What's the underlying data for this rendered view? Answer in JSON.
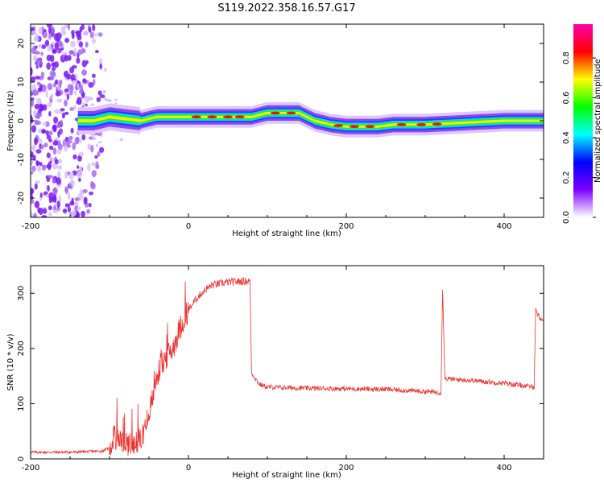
{
  "title": "S119.2022.358.16.57.G17",
  "chart_data": [
    {
      "type": "heatmap",
      "xlabel": "Height of straight line (km)",
      "ylabel": "Frequency (Hz)",
      "xlim": [
        -200,
        450
      ],
      "ylim": [
        -25,
        25
      ],
      "x_ticks": [
        "-200",
        "0",
        "200",
        "400"
      ],
      "y_ticks": [
        "-20",
        "-10",
        "0",
        "10",
        "20"
      ],
      "colorbar": {
        "label": "Normalized spectral amplitude",
        "range": [
          0.0,
          0.97
        ],
        "ticks": [
          "0.0",
          "0.2",
          "0.4",
          "0.6",
          "0.8"
        ],
        "colors": [
          "#ffffff",
          "#7b00ff",
          "#0000ff",
          "#00ffff",
          "#00ff00",
          "#ffff00",
          "#ff0000",
          "#ff00aa"
        ]
      },
      "ridge": {
        "x": [
          -140,
          -120,
          -100,
          -80,
          -60,
          -40,
          -20,
          0,
          50,
          80,
          100,
          140,
          160,
          180,
          200,
          240,
          260,
          300,
          350,
          400,
          450
        ],
        "frequency_hz": [
          0,
          0,
          1,
          0.5,
          0,
          1,
          1,
          1,
          1,
          1,
          2,
          2,
          0,
          -1,
          -1.5,
          -1.5,
          -1,
          -1,
          -0.5,
          0,
          0
        ]
      },
      "noise_region_x": [
        -200,
        -130
      ]
    },
    {
      "type": "line",
      "xlabel": "Height of straight line (km)",
      "ylabel": "SNR (10 * v/v)",
      "xlim": [
        -200,
        450
      ],
      "ylim": [
        0,
        350
      ],
      "x_ticks": [
        "-200",
        "0",
        "200",
        "400"
      ],
      "y_ticks": [
        "0",
        "100",
        "200",
        "300"
      ],
      "series": [
        {
          "color": "#ee3333",
          "x": [
            -200,
            -150,
            -110,
            -100,
            -95,
            -80,
            -60,
            -50,
            -40,
            -30,
            -20,
            -10,
            0,
            10,
            20,
            30,
            50,
            70,
            78,
            80,
            90,
            100,
            150,
            200,
            250,
            300,
            320,
            322,
            325,
            350,
            400,
            438,
            440,
            445,
            450
          ],
          "y": [
            12,
            12,
            14,
            20,
            40,
            25,
            35,
            80,
            150,
            180,
            200,
            240,
            270,
            290,
            305,
            315,
            320,
            322,
            322,
            155,
            135,
            130,
            128,
            127,
            126,
            122,
            120,
            310,
            145,
            143,
            137,
            130,
            270,
            255,
            250
          ]
        }
      ]
    }
  ]
}
